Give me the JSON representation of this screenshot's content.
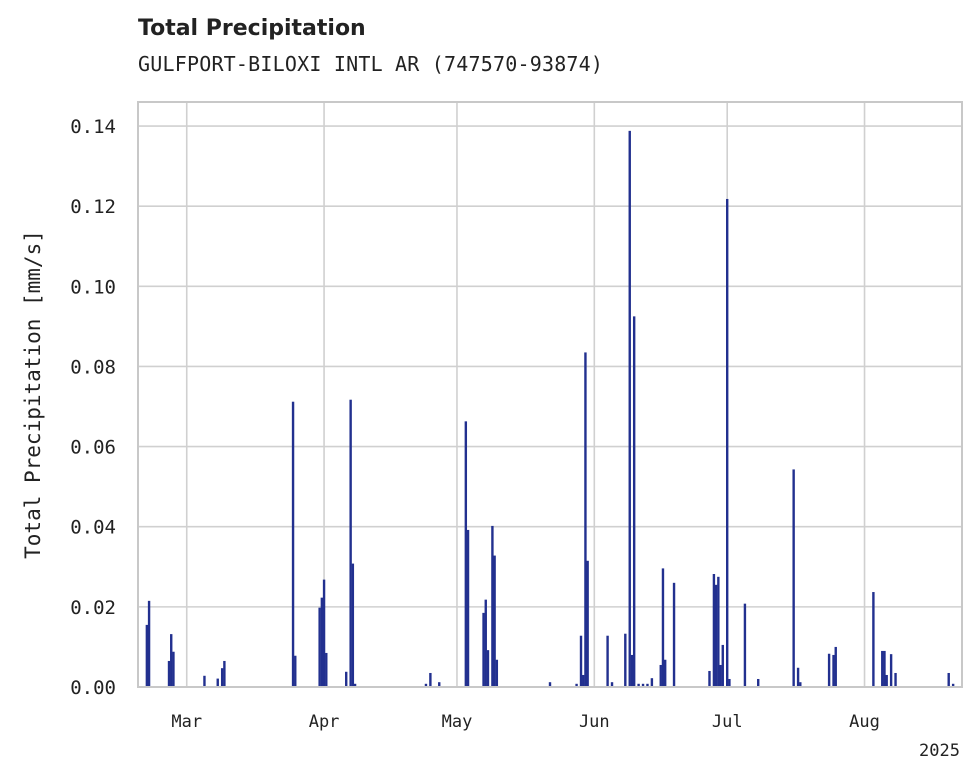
{
  "chart_data": {
    "type": "bar",
    "title": "Total Precipitation",
    "subtitle": "GULFPORT-BILOXI INTL AR (747570-93874)",
    "xlabel": "",
    "ylabel": "Total Precipitation [mm/s]",
    "ylim": [
      0,
      0.146
    ],
    "yticks": [
      "0.00",
      "0.02",
      "0.04",
      "0.06",
      "0.08",
      "0.10",
      "0.12",
      "0.14"
    ],
    "xlim": [
      "2025-02-18",
      "2025-08-23"
    ],
    "xticks": [
      {
        "date": "2025-03-01",
        "label": "Mar"
      },
      {
        "date": "2025-04-01",
        "label": "Apr"
      },
      {
        "date": "2025-05-01",
        "label": "May"
      },
      {
        "date": "2025-06-01",
        "label": "Jun"
      },
      {
        "date": "2025-07-01",
        "label": "Jul"
      },
      {
        "date": "2025-08-01",
        "label": "Aug"
      }
    ],
    "year_label": "2025",
    "grid": true,
    "color": "#22308f",
    "points": [
      {
        "x": "2025-02-20",
        "y": 0.0155
      },
      {
        "x": "2025-02-20T12:00",
        "y": 0.0215
      },
      {
        "x": "2025-02-25",
        "y": 0.0065
      },
      {
        "x": "2025-02-25T12:00",
        "y": 0.0132
      },
      {
        "x": "2025-02-26",
        "y": 0.0088
      },
      {
        "x": "2025-03-05",
        "y": 0.0028
      },
      {
        "x": "2025-03-08",
        "y": 0.0021
      },
      {
        "x": "2025-03-09",
        "y": 0.0047
      },
      {
        "x": "2025-03-09T12:00",
        "y": 0.0065
      },
      {
        "x": "2025-03-25",
        "y": 0.0712
      },
      {
        "x": "2025-03-25T12:00",
        "y": 0.0078
      },
      {
        "x": "2025-03-31",
        "y": 0.0198
      },
      {
        "x": "2025-03-31T12:00",
        "y": 0.0223
      },
      {
        "x": "2025-04-01",
        "y": 0.0268
      },
      {
        "x": "2025-04-01T12:00",
        "y": 0.0085
      },
      {
        "x": "2025-04-06",
        "y": 0.0038
      },
      {
        "x": "2025-04-07",
        "y": 0.0717
      },
      {
        "x": "2025-04-07T12:00",
        "y": 0.0308
      },
      {
        "x": "2025-04-08",
        "y": 0.0008
      },
      {
        "x": "2025-04-24",
        "y": 0.0008
      },
      {
        "x": "2025-04-25",
        "y": 0.0035
      },
      {
        "x": "2025-04-27",
        "y": 0.0012
      },
      {
        "x": "2025-05-03",
        "y": 0.0663
      },
      {
        "x": "2025-05-03T12:00",
        "y": 0.0392
      },
      {
        "x": "2025-05-07",
        "y": 0.0185
      },
      {
        "x": "2025-05-07T12:00",
        "y": 0.0218
      },
      {
        "x": "2025-05-08",
        "y": 0.0092
      },
      {
        "x": "2025-05-09",
        "y": 0.0402
      },
      {
        "x": "2025-05-09T12:00",
        "y": 0.0328
      },
      {
        "x": "2025-05-10",
        "y": 0.0068
      },
      {
        "x": "2025-05-22",
        "y": 0.0012
      },
      {
        "x": "2025-05-28",
        "y": 0.0008
      },
      {
        "x": "2025-05-29",
        "y": 0.0128
      },
      {
        "x": "2025-05-29T12:00",
        "y": 0.003
      },
      {
        "x": "2025-05-30",
        "y": 0.0835
      },
      {
        "x": "2025-05-30T12:00",
        "y": 0.0315
      },
      {
        "x": "2025-06-04",
        "y": 0.0128
      },
      {
        "x": "2025-06-05",
        "y": 0.0012
      },
      {
        "x": "2025-06-08",
        "y": 0.0133
      },
      {
        "x": "2025-06-09",
        "y": 0.1388
      },
      {
        "x": "2025-06-09T12:00",
        "y": 0.008
      },
      {
        "x": "2025-06-10",
        "y": 0.0925
      },
      {
        "x": "2025-06-11",
        "y": 0.0008
      },
      {
        "x": "2025-06-12",
        "y": 0.0008
      },
      {
        "x": "2025-06-13",
        "y": 0.0008
      },
      {
        "x": "2025-06-14",
        "y": 0.0022
      },
      {
        "x": "2025-06-16",
        "y": 0.0055
      },
      {
        "x": "2025-06-16T12:00",
        "y": 0.0296
      },
      {
        "x": "2025-06-17",
        "y": 0.0068
      },
      {
        "x": "2025-06-19",
        "y": 0.026
      },
      {
        "x": "2025-06-27",
        "y": 0.004
      },
      {
        "x": "2025-06-28",
        "y": 0.0282
      },
      {
        "x": "2025-06-28T12:00",
        "y": 0.0255
      },
      {
        "x": "2025-06-29",
        "y": 0.0275
      },
      {
        "x": "2025-06-29T12:00",
        "y": 0.0055
      },
      {
        "x": "2025-06-30",
        "y": 0.0105
      },
      {
        "x": "2025-07-01",
        "y": 0.1218
      },
      {
        "x": "2025-07-01T12:00",
        "y": 0.002
      },
      {
        "x": "2025-07-05",
        "y": 0.0208
      },
      {
        "x": "2025-07-08",
        "y": 0.002
      },
      {
        "x": "2025-07-16",
        "y": 0.0543
      },
      {
        "x": "2025-07-17",
        "y": 0.0048
      },
      {
        "x": "2025-07-17T12:00",
        "y": 0.0012
      },
      {
        "x": "2025-07-24",
        "y": 0.0083
      },
      {
        "x": "2025-07-25",
        "y": 0.008
      },
      {
        "x": "2025-07-25T12:00",
        "y": 0.01
      },
      {
        "x": "2025-08-03",
        "y": 0.0237
      },
      {
        "x": "2025-08-05",
        "y": 0.009
      },
      {
        "x": "2025-08-05T12:00",
        "y": 0.009
      },
      {
        "x": "2025-08-06",
        "y": 0.003
      },
      {
        "x": "2025-08-07",
        "y": 0.0082
      },
      {
        "x": "2025-08-08",
        "y": 0.0035
      },
      {
        "x": "2025-08-20",
        "y": 0.0035
      },
      {
        "x": "2025-08-21",
        "y": 0.0008
      }
    ]
  }
}
